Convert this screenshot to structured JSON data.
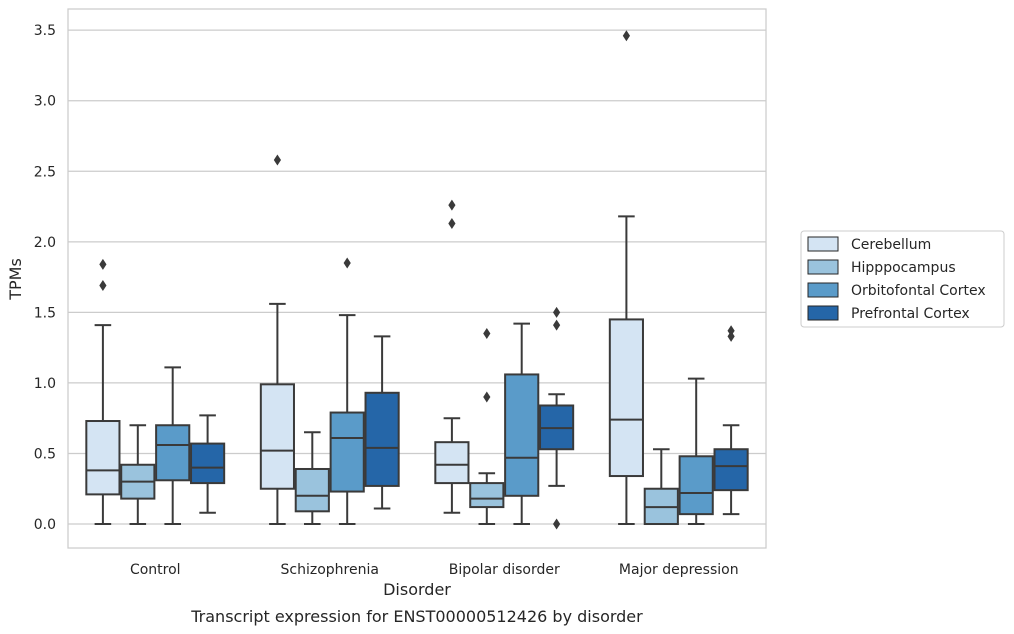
{
  "chart_data": {
    "type": "boxplot",
    "title": "",
    "caption": "Transcript expression for ENST00000512426 by disorder",
    "xlabel": "Disorder",
    "ylabel": "TPMs",
    "ylim": [
      -0.17,
      3.65
    ],
    "yticks": [
      0.0,
      0.5,
      1.0,
      1.5,
      2.0,
      2.5,
      3.0,
      3.5
    ],
    "ytick_labels": [
      "0.0",
      "0.5",
      "1.0",
      "1.5",
      "2.0",
      "2.5",
      "3.0",
      "3.5"
    ],
    "grid": "horizontal",
    "legend_position": "right-outside",
    "categories": [
      "Control",
      "Schizophrenia",
      "Bipolar disorder",
      "Major depression"
    ],
    "series": [
      {
        "name": "Cerebellum",
        "color": "#d4e4f3",
        "boxes": [
          {
            "whislo": 0.0,
            "q1": 0.21,
            "med": 0.38,
            "q3": 0.73,
            "whishi": 1.41,
            "fliers": [
              1.69,
              1.84
            ]
          },
          {
            "whislo": 0.0,
            "q1": 0.25,
            "med": 0.52,
            "q3": 0.99,
            "whishi": 1.56,
            "fliers": [
              2.58
            ]
          },
          {
            "whislo": 0.08,
            "q1": 0.29,
            "med": 0.42,
            "q3": 0.58,
            "whishi": 0.75,
            "fliers": [
              2.13,
              2.26
            ]
          },
          {
            "whislo": 0.0,
            "q1": 0.34,
            "med": 0.74,
            "q3": 1.45,
            "whishi": 2.18,
            "fliers": [
              3.46
            ]
          }
        ]
      },
      {
        "name": "Hipppocampus",
        "color": "#9ac3dd",
        "boxes": [
          {
            "whislo": 0.0,
            "q1": 0.18,
            "med": 0.3,
            "q3": 0.42,
            "whishi": 0.7,
            "fliers": []
          },
          {
            "whislo": 0.0,
            "q1": 0.09,
            "med": 0.2,
            "q3": 0.39,
            "whishi": 0.65,
            "fliers": []
          },
          {
            "whislo": 0.0,
            "q1": 0.12,
            "med": 0.18,
            "q3": 0.29,
            "whishi": 0.36,
            "fliers": [
              0.9,
              1.35
            ]
          },
          {
            "whislo": 0.0,
            "q1": 0.0,
            "med": 0.12,
            "q3": 0.25,
            "whishi": 0.53,
            "fliers": []
          }
        ]
      },
      {
        "name": "Orbitofontal Cortex",
        "color": "#5a9bc9",
        "boxes": [
          {
            "whislo": 0.0,
            "q1": 0.31,
            "med": 0.56,
            "q3": 0.7,
            "whishi": 1.11,
            "fliers": []
          },
          {
            "whislo": 0.0,
            "q1": 0.23,
            "med": 0.61,
            "q3": 0.79,
            "whishi": 1.48,
            "fliers": [
              1.85
            ]
          },
          {
            "whislo": 0.0,
            "q1": 0.2,
            "med": 0.47,
            "q3": 1.06,
            "whishi": 1.42,
            "fliers": []
          },
          {
            "whislo": 0.0,
            "q1": 0.07,
            "med": 0.22,
            "q3": 0.48,
            "whishi": 1.03,
            "fliers": []
          }
        ]
      },
      {
        "name": "Prefrontal Cortex",
        "color": "#2566a8",
        "boxes": [
          {
            "whislo": 0.08,
            "q1": 0.29,
            "med": 0.4,
            "q3": 0.57,
            "whishi": 0.77,
            "fliers": []
          },
          {
            "whislo": 0.11,
            "q1": 0.27,
            "med": 0.54,
            "q3": 0.93,
            "whishi": 1.33,
            "fliers": []
          },
          {
            "whislo": 0.27,
            "q1": 0.53,
            "med": 0.68,
            "q3": 0.84,
            "whishi": 0.92,
            "fliers": [
              0.0,
              1.41,
              1.5
            ]
          },
          {
            "whislo": 0.07,
            "q1": 0.24,
            "med": 0.41,
            "q3": 0.53,
            "whishi": 0.7,
            "fliers": [
              1.33,
              1.37
            ]
          }
        ]
      }
    ]
  }
}
